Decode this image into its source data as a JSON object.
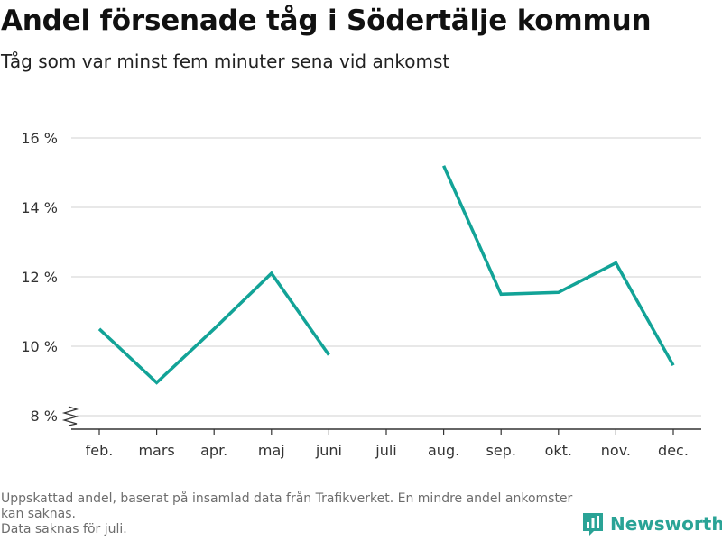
{
  "header": {
    "title": "Andel försenade tåg i Södertälje kommun",
    "subtitle": "Tåg som var minst fem minuter sena vid ankomst"
  },
  "footer": {
    "note_line1": "Uppskattad andel, baserat på insamlad data från Trafikverket. En mindre andel ankomster kan saknas.",
    "note_line2": "Data saknas för juli.",
    "brand": "Newsworthy"
  },
  "colors": {
    "line": "#12a397",
    "grid": "#d9d9d9",
    "axis": "#333333",
    "brand": "#2aa396"
  },
  "icons": {
    "brand_logo": "bar-chart-logo-icon",
    "axis_break": "axis-break-icon"
  },
  "chart_data": {
    "type": "line",
    "categories": [
      "feb.",
      "mars",
      "apr.",
      "maj",
      "juni",
      "juli",
      "aug.",
      "sep.",
      "okt.",
      "nov.",
      "dec."
    ],
    "series": [
      {
        "values": [
          10.5,
          8.95,
          10.5,
          12.1,
          9.75,
          null,
          15.2,
          11.5,
          11.55,
          12.4,
          9.45
        ]
      }
    ],
    "ylim": [
      8,
      16
    ],
    "yticks": [
      8,
      10,
      12,
      14,
      16
    ],
    "ytick_labels": [
      "8 %",
      "10 %",
      "12 %",
      "14 %",
      "16 %"
    ],
    "grid": true,
    "xlabel": "",
    "ylabel": ""
  }
}
